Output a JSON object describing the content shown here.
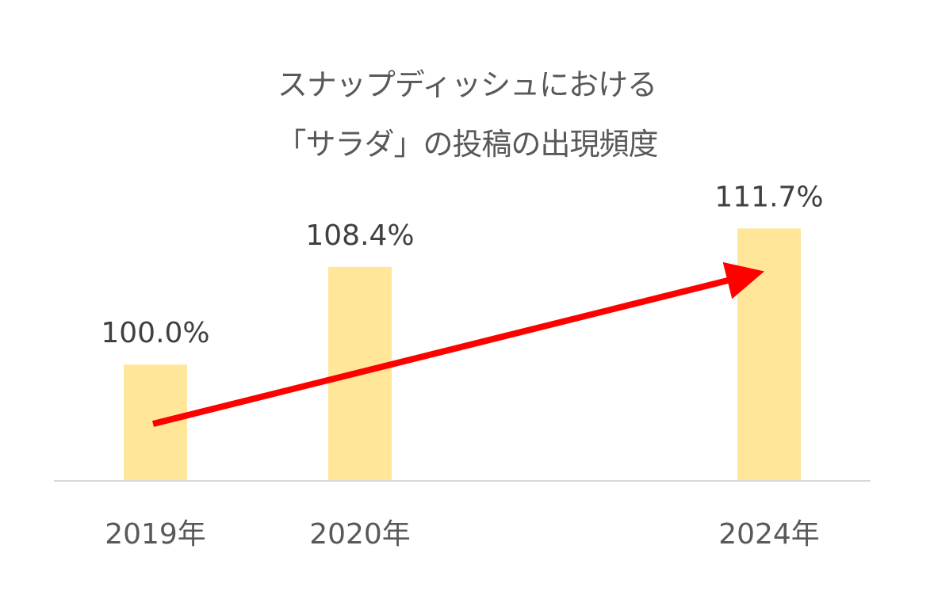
{
  "chart_data": {
    "type": "bar",
    "title_lines": [
      "スナップディッシュにおける",
      "「サラダ」の投稿の出現頻度"
    ],
    "categories": [
      "2019年",
      "2020年",
      "2024年"
    ],
    "values": [
      100.0,
      108.4,
      111.7
    ],
    "data_labels": [
      "100.0%",
      "108.4%",
      "111.7%"
    ],
    "xlabel": "",
    "ylabel": "",
    "ylim": [
      90,
      112
    ],
    "grid": false,
    "legend": "none",
    "annotations": [
      "trend-arrow"
    ]
  },
  "colors": {
    "bar": "#FFE699",
    "arrow": "#FF0000",
    "axis": "#D9D9D9",
    "title": "#595959",
    "label": "#404040"
  }
}
